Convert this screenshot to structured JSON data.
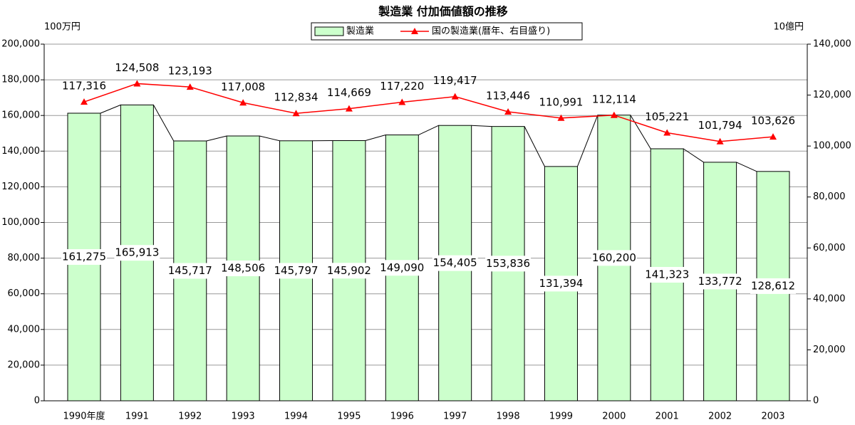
{
  "chart_data": {
    "type": "bar",
    "title": "製造業 付加価値額の推移",
    "y_unit": "100万円",
    "y2_unit": "10億円",
    "categories": [
      "1990年度",
      "1991",
      "1992",
      "1993",
      "1994",
      "1995",
      "1996",
      "1997",
      "1998",
      "1999",
      "2000",
      "2001",
      "2002",
      "2003"
    ],
    "series": [
      {
        "name": "製造業",
        "type": "bar",
        "color": "#ccffcc",
        "values": [
          161275,
          165913,
          145717,
          148506,
          145797,
          145902,
          149090,
          154405,
          153836,
          131394,
          160200,
          141323,
          133772,
          128612
        ],
        "value_labels": [
          "161,275",
          "165,913",
          "145,717",
          "148,506",
          "145,797",
          "145,902",
          "149,090",
          "154,405",
          "153,836",
          "131,394",
          "160,200",
          "141,323",
          "133,772",
          "128,612"
        ]
      },
      {
        "name": "国の製造業(暦年、右目盛り)",
        "type": "line",
        "axis": "y2",
        "color": "#ff0000",
        "values": [
          117316,
          124508,
          123193,
          117008,
          112834,
          114669,
          117220,
          119417,
          113446,
          110991,
          112114,
          105221,
          101794,
          103626
        ],
        "value_labels": [
          "117,316",
          "124,508",
          "123,193",
          "117,008",
          "112,834",
          "114,669",
          "117,220",
          "119,417",
          "113,446",
          "110,991",
          "112,114",
          "105,221",
          "101,794",
          "103,626"
        ]
      }
    ],
    "ylim": [
      0,
      200000
    ],
    "yticks": [
      0,
      {
        "value": 20000,
        "label": "20,000"
      },
      {
        "value": 40000,
        "label": "40,000"
      },
      {
        "value": 60000,
        "label": "60,000"
      },
      {
        "value": 80000,
        "label": "80,000"
      },
      {
        "value": 100000,
        "label": "100,000"
      },
      {
        "value": 120000,
        "label": "120,000"
      },
      {
        "value": 140000,
        "label": "140,000"
      },
      {
        "value": 160000,
        "label": "160,000"
      },
      {
        "value": 180000,
        "label": "180,000"
      },
      {
        "value": 200000,
        "label": "200,000"
      }
    ],
    "y2lim": [
      0,
      140000
    ],
    "y2ticks": [
      0,
      {
        "value": 20000,
        "label": "20,000"
      },
      {
        "value": 40000,
        "label": "40,000"
      },
      {
        "value": 60000,
        "label": "60,000"
      },
      {
        "value": 80000,
        "label": "80,000"
      },
      {
        "value": 100000,
        "label": "100,000"
      },
      {
        "value": 120000,
        "label": "120,000"
      },
      {
        "value": 140000,
        "label": "140,000"
      }
    ],
    "grid": true
  }
}
